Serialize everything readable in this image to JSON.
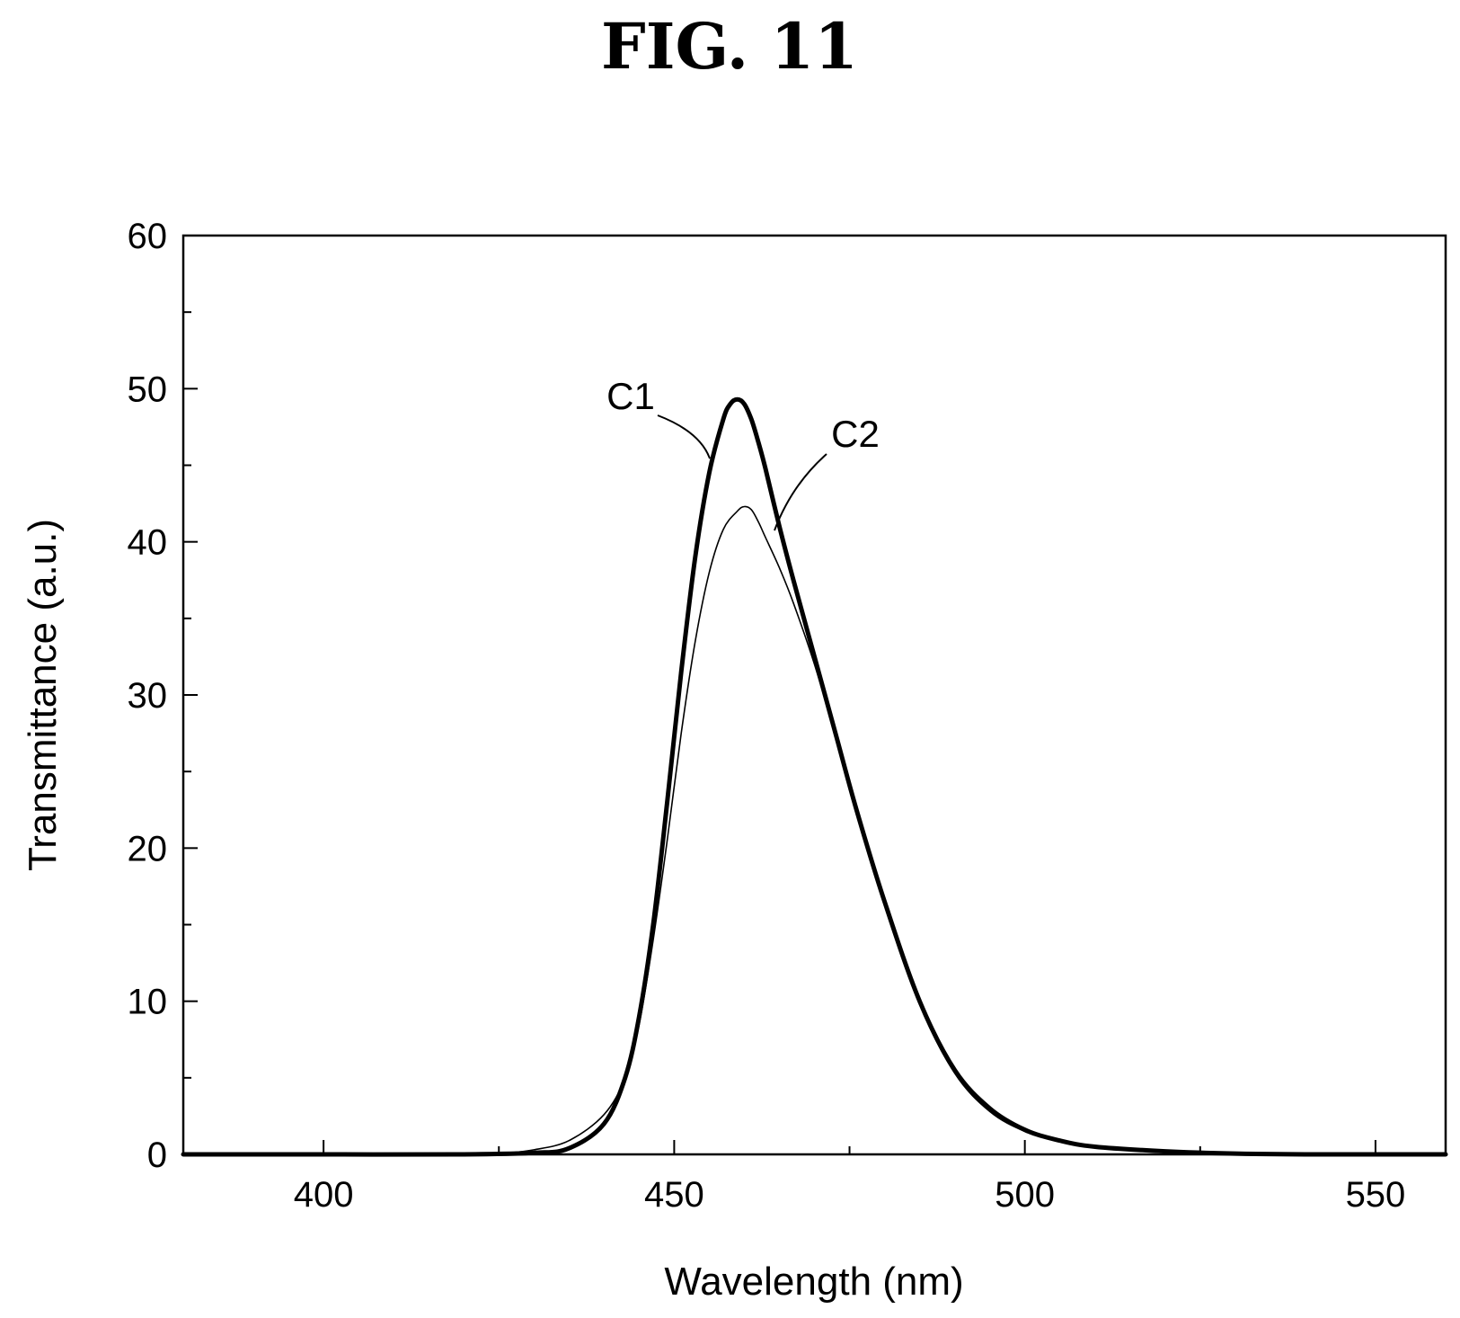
{
  "figure": {
    "label": "FIG. 11"
  },
  "chart_data": {
    "type": "line",
    "title": "",
    "xlabel": "Wavelength (nm)",
    "ylabel": "Transmittance (a.u.)",
    "xlim": [
      380,
      560
    ],
    "ylim": [
      0,
      60
    ],
    "x_ticks": [
      400,
      450,
      500,
      550
    ],
    "y_ticks": [
      0,
      10,
      20,
      30,
      40,
      50,
      60
    ],
    "x_minor_ticks": [
      425,
      475,
      525
    ],
    "y_minor_ticks": [
      5,
      15,
      25,
      35,
      45,
      55
    ],
    "grid": false,
    "legend": "none",
    "series": [
      {
        "name": "C1",
        "line_weight": "thick",
        "x": [
          380,
          400,
          420,
          430,
          435,
          440,
          443,
          445,
          447,
          449,
          451,
          453,
          455,
          457,
          458,
          459,
          460,
          461,
          462,
          463,
          465,
          467,
          470,
          473,
          476,
          480,
          485,
          490,
          495,
          500,
          505,
          510,
          520,
          530,
          540,
          550,
          560
        ],
        "y": [
          0,
          0,
          0,
          0.1,
          0.4,
          2.0,
          5.0,
          9.0,
          15.0,
          23.0,
          31.5,
          39.0,
          44.5,
          48.0,
          49.0,
          49.3,
          49.0,
          48.0,
          46.5,
          44.8,
          41.0,
          37.5,
          32.5,
          27.5,
          22.5,
          16.5,
          10.0,
          5.5,
          3.0,
          1.6,
          0.9,
          0.5,
          0.2,
          0.05,
          0,
          0,
          0
        ]
      },
      {
        "name": "C2",
        "line_weight": "thin",
        "x": [
          380,
          400,
          420,
          425,
          430,
          435,
          440,
          443,
          445,
          447,
          449,
          451,
          453,
          455,
          457,
          459,
          460,
          461,
          462,
          463,
          465,
          467,
          470,
          473,
          476,
          480,
          485,
          490,
          495,
          500,
          505,
          510,
          520,
          530,
          540,
          550,
          560
        ],
        "y": [
          0,
          0,
          0,
          0.05,
          0.3,
          0.9,
          2.6,
          5.0,
          8.5,
          14.0,
          20.5,
          27.5,
          33.5,
          38.0,
          40.8,
          42.0,
          42.3,
          42.1,
          41.3,
          40.3,
          38.3,
          36.0,
          32.0,
          27.3,
          22.3,
          16.3,
          9.8,
          5.3,
          2.8,
          1.5,
          0.85,
          0.5,
          0.2,
          0.05,
          0,
          0,
          0
        ]
      }
    ],
    "annotations": [
      {
        "text": "C1",
        "series": "C1"
      },
      {
        "text": "C2",
        "series": "C2"
      }
    ]
  }
}
